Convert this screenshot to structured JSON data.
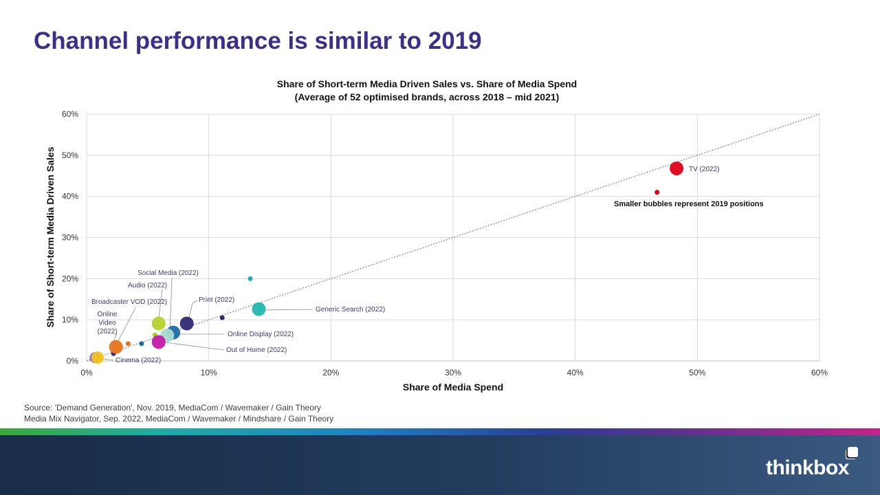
{
  "slide": {
    "title": "Channel performance is similar to 2019",
    "source_lines": [
      "Source: 'Demand Generation', Nov. 2019, MediaCom / Wavemaker / Gain Theory",
      "Media Mix Navigator, Sep. 2022, MediaCom / Wavemaker / Mindshare / Gain Theory"
    ],
    "logo": "thinkbox"
  },
  "chart_data": {
    "type": "scatter",
    "title": "Share of Short-term Media Driven Sales vs. Share of Media Spend",
    "subtitle": "(Average of 52 optimised brands, across 2018 – mid 2021)",
    "xlabel": "Share of Media Spend",
    "ylabel": "Share of Short-term Media Driven Sales",
    "xlim": [
      0,
      60
    ],
    "ylim": [
      0,
      60
    ],
    "x_ticks": [
      "0%",
      "10%",
      "20%",
      "30%",
      "40%",
      "50%",
      "60%"
    ],
    "y_ticks": [
      "0%",
      "10%",
      "20%",
      "30%",
      "40%",
      "50%",
      "60%"
    ],
    "grid": true,
    "reference_line": {
      "style": "dotted",
      "from": [
        0,
        0
      ],
      "to": [
        60,
        60
      ]
    },
    "annotation": "Smaller bubbles represent 2019 positions",
    "points_2019": [
      {
        "channel": "TV",
        "x": 46.7,
        "y": 41.0,
        "color": "#d7001d"
      },
      {
        "channel": "Generic Search",
        "x": 13.4,
        "y": 20.0,
        "color": "#1ab5ad"
      },
      {
        "channel": "Print",
        "x": 11.1,
        "y": 10.5,
        "color": "#2e2a78"
      },
      {
        "channel": "Audio",
        "x": 5.6,
        "y": 6.3,
        "color": "#a8c82b"
      },
      {
        "channel": "Online Display",
        "x": 4.5,
        "y": 4.2,
        "color": "#1e6aa8"
      },
      {
        "channel": "Online Video",
        "x": 3.4,
        "y": 4.2,
        "color": "#e8731b"
      },
      {
        "channel": "Cinema",
        "x": 2.2,
        "y": 1.8,
        "color": "#2e2a78"
      }
    ],
    "points_2022": [
      {
        "channel": "TV",
        "label": "TV (2022)",
        "x": 48.3,
        "y": 46.8,
        "color": "#e2001a",
        "r": 10
      },
      {
        "channel": "Generic Search",
        "label": "Generic Search (2022)",
        "x": 14.1,
        "y": 12.6,
        "color": "#1fb8b0",
        "r": 10
      },
      {
        "channel": "Print",
        "label": "Print (2022)",
        "x": 8.2,
        "y": 9.1,
        "color": "#2e2a78",
        "r": 10
      },
      {
        "channel": "Online Display",
        "label": "Online Display (2022)",
        "x": 7.1,
        "y": 6.9,
        "color": "#1e6aa8",
        "r": 10
      },
      {
        "channel": "Social Media",
        "label": "Social Media (2022)",
        "x": 6.6,
        "y": 6.2,
        "color": "#a8dcd0",
        "r": 10
      },
      {
        "channel": "Audio",
        "label": "Audio (2022)",
        "x": 5.9,
        "y": 9.1,
        "color": "#b4d22b",
        "r": 10
      },
      {
        "channel": "Out of Home",
        "label": "Out of Home (2022)",
        "x": 5.9,
        "y": 4.6,
        "color": "#c21aa8",
        "r": 10
      },
      {
        "channel": "Online Video",
        "label": "Online Video (2022)",
        "x": 2.4,
        "y": 3.4,
        "color": "#e8731b",
        "r": 10
      },
      {
        "channel": "Broadcaster VOD",
        "label": "Broadcaster VOD (2022)",
        "x": 0.7,
        "y": 0.8,
        "color": "#8a6cc8",
        "r": 8
      },
      {
        "channel": "Cinema",
        "label": "Cinema (2022)",
        "x": 0.9,
        "y": 0.8,
        "color": "#f5c21b",
        "r": 9
      }
    ]
  }
}
